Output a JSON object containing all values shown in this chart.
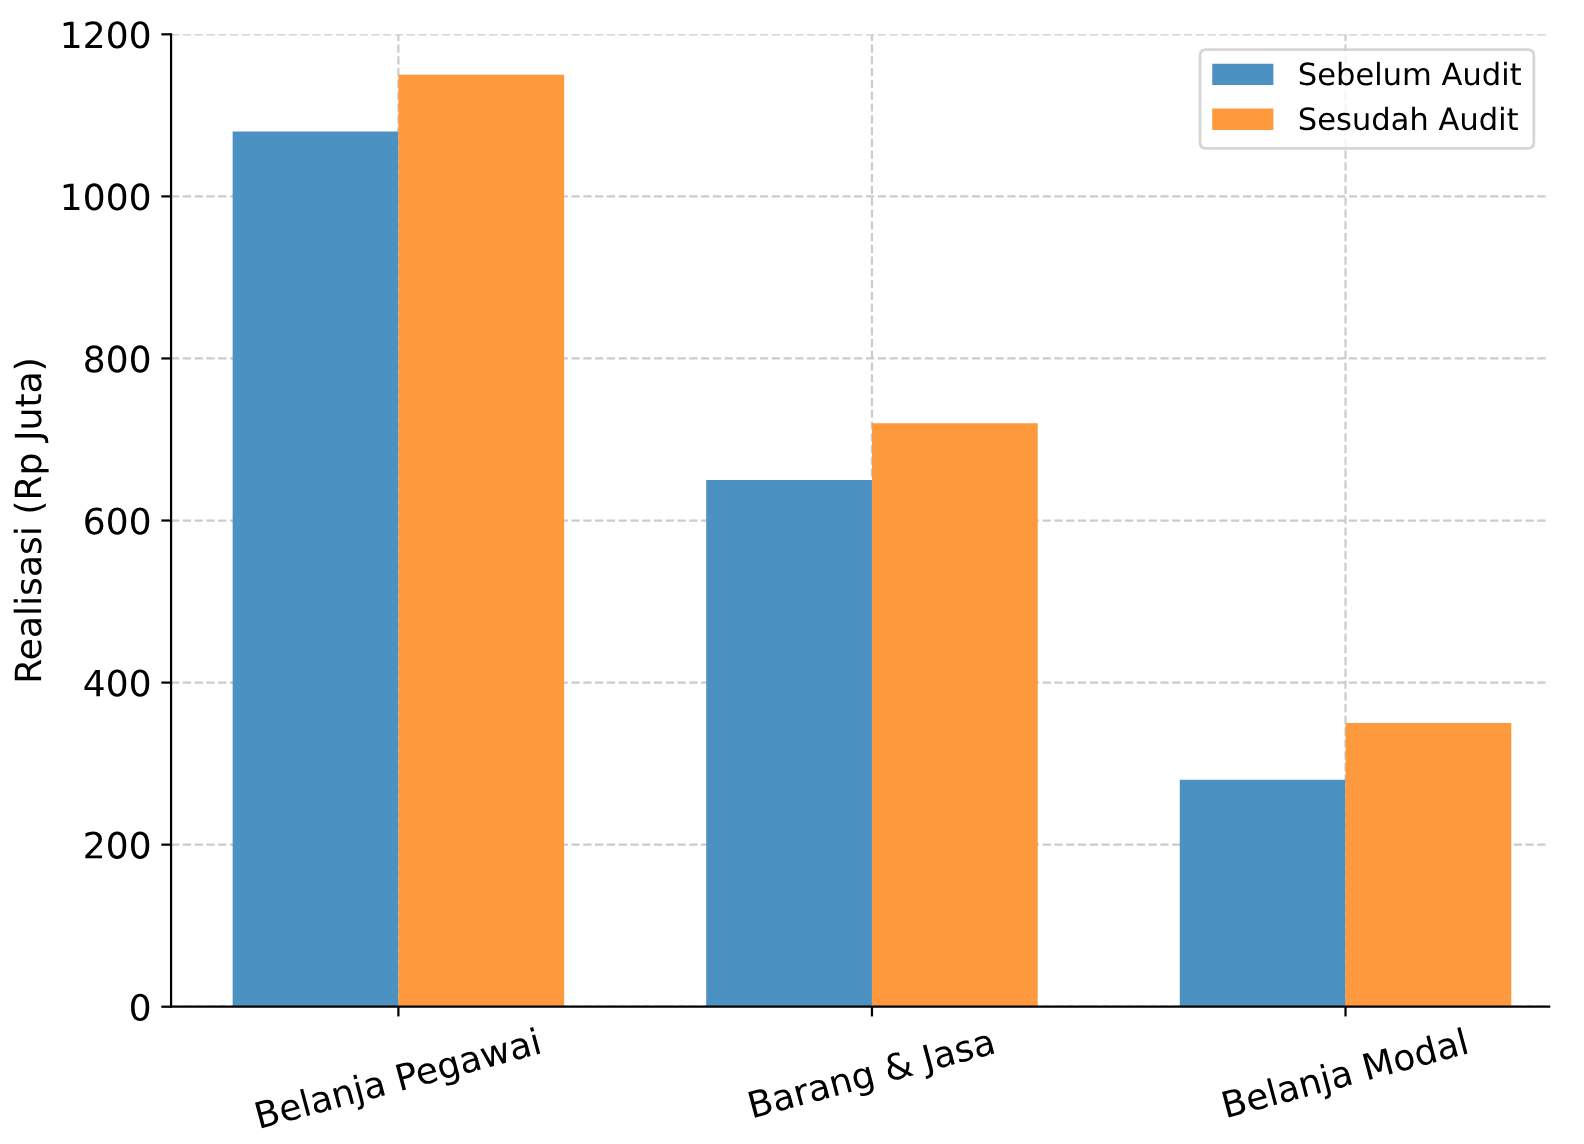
{
  "chart_data": {
    "type": "bar",
    "ylabel": "Realisasi (Rp Juta)",
    "categories": [
      "Belanja Pegawai",
      "Barang & Jasa",
      "Belanja Modal"
    ],
    "series": [
      {
        "name": "Sebelum Audit",
        "color": "#4b92c3",
        "values": [
          1080,
          650,
          280
        ]
      },
      {
        "name": "Sesudah Audit",
        "color": "#ff993e",
        "values": [
          1150,
          720,
          350
        ]
      }
    ],
    "ylim": [
      0,
      1200
    ],
    "yticks": [
      0,
      200,
      400,
      600,
      800,
      1000,
      1200
    ],
    "grid": true,
    "legend": "top right"
  }
}
